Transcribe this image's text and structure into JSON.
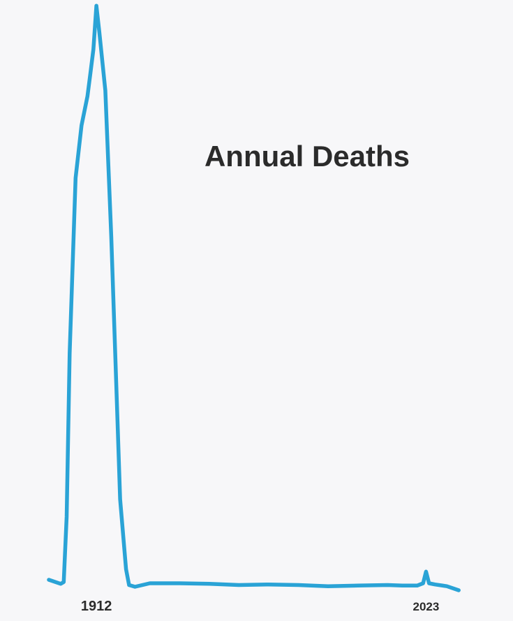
{
  "chart_data": {
    "type": "line",
    "title": "Annual Deaths",
    "xlabel": "",
    "ylabel": "",
    "grid": false,
    "xlim": [
      1896,
      2037
    ],
    "ylim": [
      0,
      100
    ],
    "x_ticks": [
      "1912",
      "2023"
    ],
    "series": [
      {
        "color": "#2aa3d6",
        "x": [
          1896,
          1900,
          1901,
          1902,
          1903,
          1905,
          1907,
          1909,
          1910,
          1911,
          1912,
          1913,
          1915,
          1917,
          1919,
          1920,
          1922,
          1923,
          1925,
          1930,
          1940,
          1950,
          1960,
          1970,
          1980,
          1990,
          2000,
          2010,
          2015,
          2020,
          2022,
          2023,
          2024,
          2026,
          2030,
          2034
        ],
        "y": [
          1.2,
          0.5,
          0.8,
          12,
          40,
          70,
          79,
          84,
          88,
          92,
          99.5,
          95,
          85,
          60,
          30,
          15,
          3,
          0.3,
          0.0,
          0.6,
          0.6,
          0.5,
          0.3,
          0.4,
          0.3,
          0.1,
          0.2,
          0.3,
          0.2,
          0.2,
          0.6,
          2.6,
          0.6,
          0.4,
          0.1,
          -0.6
        ]
      }
    ]
  }
}
